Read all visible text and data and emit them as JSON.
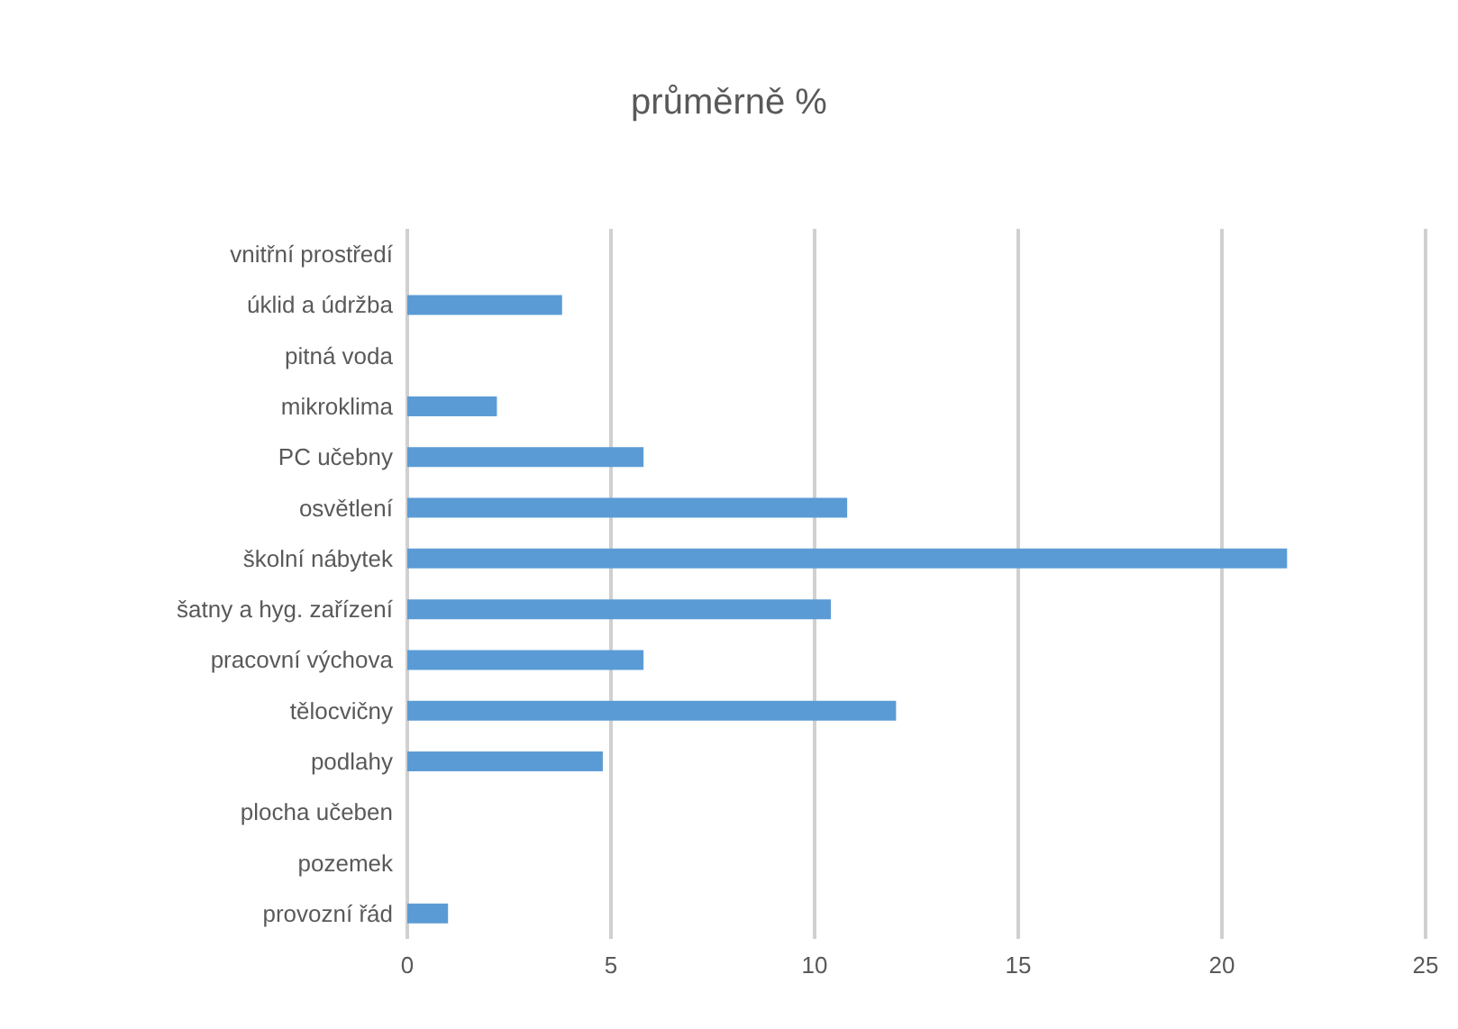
{
  "chart_data": {
    "type": "bar",
    "orientation": "horizontal",
    "title": "průměrně %",
    "categories": [
      "vnitřní prostředí",
      "úklid a údržba",
      "pitná voda",
      "mikroklima",
      "PC učebny",
      "osvětlení",
      "školní nábytek",
      "šatny a hyg. zařízení",
      "pracovní výchova",
      "tělocvičny",
      "podlahy",
      "plocha učeben",
      "pozemek",
      "provozní řád"
    ],
    "values": [
      0,
      3.8,
      0,
      2.2,
      5.8,
      10.8,
      21.6,
      10.4,
      5.8,
      12.0,
      4.8,
      0,
      0,
      1.0
    ],
    "color": "#5b9bd5",
    "xlim": [
      0,
      25
    ],
    "xticks": [
      0,
      5,
      10,
      15,
      20,
      25
    ],
    "grid": "x"
  }
}
